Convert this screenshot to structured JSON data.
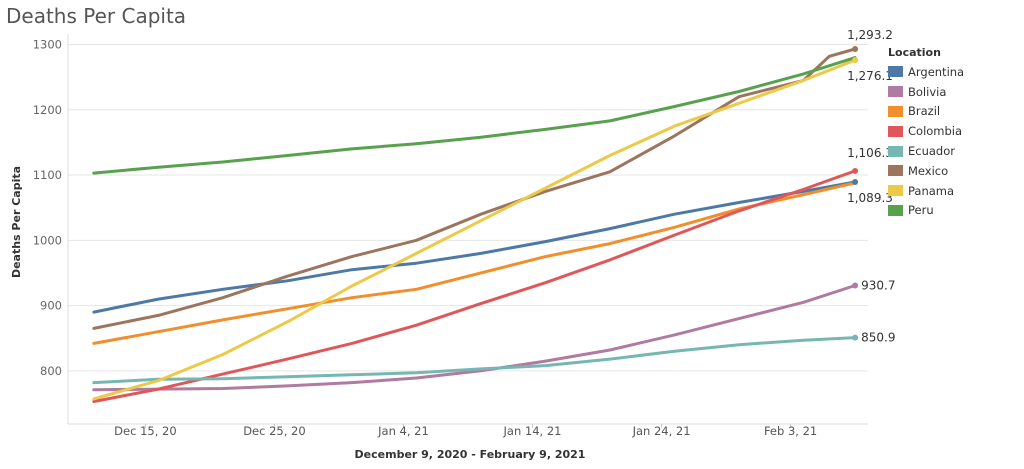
{
  "title": "Deaths Per Capita",
  "chart_data": {
    "type": "line",
    "xlabel": "December 9, 2020 - February 9, 2021",
    "ylabel": "Deaths Per Capita",
    "xlim": [
      "2020-12-09",
      "2021-02-09"
    ],
    "ylim": [
      740,
      1310
    ],
    "x_ticks": [
      {
        "date": "2020-12-15",
        "label": "Dec 15, 20"
      },
      {
        "date": "2020-12-25",
        "label": "Dec 25, 20"
      },
      {
        "date": "2021-01-04",
        "label": "Jan 4, 21"
      },
      {
        "date": "2021-01-14",
        "label": "Jan 14, 21"
      },
      {
        "date": "2021-01-24",
        "label": "Jan 24, 21"
      },
      {
        "date": "2021-02-03",
        "label": "Feb 3, 21"
      }
    ],
    "y_ticks": [
      800,
      900,
      1000,
      1100,
      1200,
      1300
    ],
    "grid": "horizontal",
    "legend": {
      "title": "Location",
      "position": "right"
    },
    "series": [
      {
        "name": "Argentina",
        "color": "#4e79a7",
        "x": [
          "2020-12-11",
          "2020-12-16",
          "2020-12-21",
          "2020-12-26",
          "2020-12-31",
          "2021-01-05",
          "2021-01-10",
          "2021-01-15",
          "2021-01-20",
          "2021-01-25",
          "2021-01-30",
          "2021-02-04",
          "2021-02-08"
        ],
        "y": [
          890,
          910,
          925,
          938,
          955,
          965,
          980,
          998,
          1018,
          1040,
          1058,
          1075,
          1089.3
        ],
        "end_label": "1,089.3"
      },
      {
        "name": "Bolivia",
        "color": "#b07aa1",
        "x": [
          "2020-12-11",
          "2020-12-16",
          "2020-12-21",
          "2020-12-26",
          "2020-12-31",
          "2021-01-05",
          "2021-01-10",
          "2021-01-15",
          "2021-01-20",
          "2021-01-25",
          "2021-01-30",
          "2021-02-04",
          "2021-02-08"
        ],
        "y": [
          771,
          772,
          773,
          777,
          782,
          789,
          800,
          815,
          832,
          855,
          880,
          905,
          930.7
        ],
        "end_label": "930.7"
      },
      {
        "name": "Brazil",
        "color": "#f28e2b",
        "x": [
          "2020-12-11",
          "2020-12-16",
          "2020-12-21",
          "2020-12-26",
          "2020-12-31",
          "2021-01-05",
          "2021-01-10",
          "2021-01-15",
          "2021-01-20",
          "2021-01-25",
          "2021-01-30",
          "2021-02-04",
          "2021-02-08"
        ],
        "y": [
          842,
          860,
          878,
          895,
          912,
          925,
          950,
          975,
          995,
          1020,
          1048,
          1070,
          1088
        ],
        "end_label": ""
      },
      {
        "name": "Colombia",
        "color": "#e15759",
        "x": [
          "2020-12-11",
          "2020-12-16",
          "2020-12-21",
          "2020-12-26",
          "2020-12-31",
          "2021-01-05",
          "2021-01-10",
          "2021-01-15",
          "2021-01-20",
          "2021-01-25",
          "2021-01-30",
          "2021-02-04",
          "2021-02-08"
        ],
        "y": [
          753,
          772,
          795,
          818,
          842,
          870,
          903,
          935,
          970,
          1008,
          1045,
          1078,
          1106.3
        ],
        "end_label": "1,106.3"
      },
      {
        "name": "Ecuador",
        "color": "#76b7b2",
        "x": [
          "2020-12-11",
          "2020-12-16",
          "2020-12-21",
          "2020-12-26",
          "2020-12-31",
          "2021-01-05",
          "2021-01-10",
          "2021-01-15",
          "2021-01-20",
          "2021-01-25",
          "2021-01-30",
          "2021-02-04",
          "2021-02-08"
        ],
        "y": [
          782,
          787,
          788,
          791,
          794,
          797,
          803,
          808,
          818,
          830,
          840,
          847,
          850.9
        ],
        "end_label": "850.9"
      },
      {
        "name": "Mexico",
        "color": "#9c755f",
        "x": [
          "2020-12-11",
          "2020-12-16",
          "2020-12-21",
          "2020-12-26",
          "2020-12-31",
          "2021-01-05",
          "2021-01-10",
          "2021-01-15",
          "2021-01-20",
          "2021-01-25",
          "2021-01-30",
          "2021-02-04",
          "2021-02-06",
          "2021-02-08"
        ],
        "y": [
          865,
          885,
          912,
          945,
          975,
          1000,
          1040,
          1075,
          1105,
          1160,
          1220,
          1245,
          1282,
          1293.2
        ],
        "end_label": "1,293.2"
      },
      {
        "name": "Panama",
        "color": "#edc948",
        "x": [
          "2020-12-11",
          "2020-12-16",
          "2020-12-21",
          "2020-12-26",
          "2020-12-31",
          "2021-01-05",
          "2021-01-10",
          "2021-01-15",
          "2021-01-20",
          "2021-01-25",
          "2021-01-30",
          "2021-02-04",
          "2021-02-08"
        ],
        "y": [
          757,
          785,
          825,
          875,
          930,
          980,
          1030,
          1080,
          1130,
          1175,
          1210,
          1245,
          1276.1
        ],
        "end_label": "1,276.1"
      },
      {
        "name": "Peru",
        "color": "#59a14f",
        "x": [
          "2020-12-11",
          "2020-12-16",
          "2020-12-21",
          "2020-12-26",
          "2020-12-31",
          "2021-01-05",
          "2021-01-10",
          "2021-01-15",
          "2021-01-20",
          "2021-01-25",
          "2021-01-30",
          "2021-02-04",
          "2021-02-08"
        ],
        "y": [
          1103,
          1112,
          1120,
          1130,
          1140,
          1148,
          1158,
          1170,
          1183,
          1205,
          1228,
          1255,
          1280
        ],
        "end_label": ""
      }
    ]
  }
}
